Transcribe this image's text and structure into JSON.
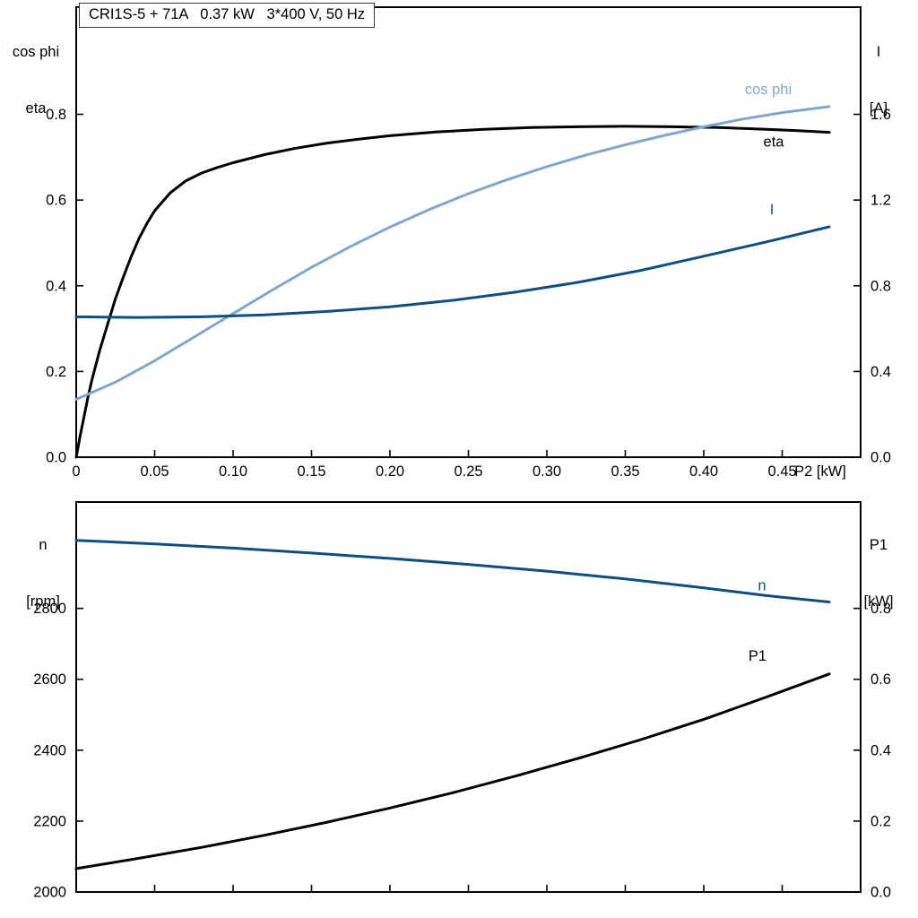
{
  "title_box": "CRI1S-5 + 71A   0.37 kW   3*400 V, 50 Hz",
  "colors": {
    "black": "#000000",
    "light_blue": "#7fa7cc",
    "dark_blue": "#0e4f80"
  },
  "chart_data": [
    {
      "id": "motor-curves-top",
      "type": "line",
      "grid": false,
      "x_axis": {
        "label": "P2 [kW]",
        "range": [
          0,
          0.5
        ],
        "ticks": [
          0,
          0.05,
          0.1,
          0.15,
          0.2,
          0.25,
          0.3,
          0.35,
          0.4,
          0.45
        ],
        "tick_labels": [
          "0",
          "0.05",
          "0.10",
          "0.15",
          "0.20",
          "0.25",
          "0.30",
          "0.35",
          "0.40",
          "0.45"
        ]
      },
      "left_axis": {
        "title_lines": [
          "cos phi",
          "eta"
        ],
        "range": [
          0,
          1.05
        ],
        "ticks": [
          0,
          0.2,
          0.4,
          0.6,
          0.8
        ],
        "tick_labels": [
          "0.0",
          "0.2",
          "0.4",
          "0.6",
          "0.8"
        ]
      },
      "right_axis": {
        "title_lines": [
          "I",
          "[A]"
        ],
        "range": [
          0,
          2.1
        ],
        "ticks": [
          0,
          0.4,
          0.8,
          1.2,
          1.6
        ],
        "tick_labels": [
          "0.0",
          "0.4",
          "0.8",
          "1.2",
          "1.6"
        ]
      },
      "series": [
        {
          "name": "eta",
          "label": "eta",
          "axis": "left",
          "color_key": "black",
          "label_offset": [
            -62,
            16
          ],
          "points": [
            [
              0,
              0
            ],
            [
              0.0025,
              0.05
            ],
            [
              0.005,
              0.095
            ],
            [
              0.0075,
              0.14
            ],
            [
              0.01,
              0.18
            ],
            [
              0.015,
              0.25
            ],
            [
              0.02,
              0.31
            ],
            [
              0.025,
              0.37
            ],
            [
              0.03,
              0.42
            ],
            [
              0.035,
              0.468
            ],
            [
              0.04,
              0.51
            ],
            [
              0.045,
              0.545
            ],
            [
              0.05,
              0.575
            ],
            [
              0.06,
              0.617
            ],
            [
              0.07,
              0.645
            ],
            [
              0.08,
              0.663
            ],
            [
              0.09,
              0.676
            ],
            [
              0.1,
              0.687
            ],
            [
              0.12,
              0.706
            ],
            [
              0.14,
              0.721
            ],
            [
              0.16,
              0.733
            ],
            [
              0.18,
              0.742
            ],
            [
              0.2,
              0.75
            ],
            [
              0.23,
              0.759
            ],
            [
              0.26,
              0.765
            ],
            [
              0.29,
              0.769
            ],
            [
              0.32,
              0.771
            ],
            [
              0.35,
              0.772
            ],
            [
              0.38,
              0.771
            ],
            [
              0.41,
              0.769
            ],
            [
              0.44,
              0.765
            ],
            [
              0.46,
              0.762
            ],
            [
              0.48,
              0.758
            ]
          ]
        },
        {
          "name": "cos-phi",
          "label": "cos phi",
          "axis": "left",
          "color_key": "light_blue",
          "label_offset": [
            -68,
            -14
          ],
          "points": [
            [
              0,
              0.135
            ],
            [
              0.025,
              0.175
            ],
            [
              0.05,
              0.225
            ],
            [
              0.075,
              0.28
            ],
            [
              0.1,
              0.335
            ],
            [
              0.125,
              0.39
            ],
            [
              0.15,
              0.443
            ],
            [
              0.175,
              0.492
            ],
            [
              0.2,
              0.537
            ],
            [
              0.225,
              0.578
            ],
            [
              0.25,
              0.615
            ],
            [
              0.275,
              0.648
            ],
            [
              0.3,
              0.678
            ],
            [
              0.325,
              0.705
            ],
            [
              0.35,
              0.729
            ],
            [
              0.375,
              0.751
            ],
            [
              0.4,
              0.771
            ],
            [
              0.425,
              0.789
            ],
            [
              0.45,
              0.804
            ],
            [
              0.48,
              0.818
            ]
          ]
        },
        {
          "name": "current",
          "label": "I",
          "axis": "right",
          "color_key": "dark_blue",
          "label_offset": [
            -64,
            -14
          ],
          "points": [
            [
              0,
              0.655
            ],
            [
              0.04,
              0.652
            ],
            [
              0.08,
              0.655
            ],
            [
              0.12,
              0.664
            ],
            [
              0.16,
              0.68
            ],
            [
              0.2,
              0.702
            ],
            [
              0.24,
              0.732
            ],
            [
              0.28,
              0.77
            ],
            [
              0.32,
              0.816
            ],
            [
              0.36,
              0.872
            ],
            [
              0.4,
              0.938
            ],
            [
              0.44,
              1.005
            ],
            [
              0.48,
              1.075
            ]
          ]
        }
      ]
    },
    {
      "id": "motor-curves-bottom",
      "type": "line",
      "grid": false,
      "x_axis": {
        "label": "",
        "range": [
          0,
          0.5
        ],
        "ticks": [
          0,
          0.05,
          0.1,
          0.15,
          0.2,
          0.25,
          0.3,
          0.35,
          0.4,
          0.45
        ],
        "tick_labels": null
      },
      "left_axis": {
        "title_lines": [
          "n",
          "[rpm]"
        ],
        "range": [
          2000,
          3100
        ],
        "ticks": [
          2000,
          2200,
          2400,
          2600,
          2800
        ],
        "tick_labels": [
          "2000",
          "2200",
          "2400",
          "2600",
          "2800"
        ]
      },
      "right_axis": {
        "title_lines": [
          "P1",
          "[kW]"
        ],
        "range": [
          0,
          1.1
        ],
        "ticks": [
          0,
          0.2,
          0.4,
          0.6,
          0.8
        ],
        "tick_labels": [
          "0.0",
          "0.2",
          "0.4",
          "0.6",
          "0.8"
        ]
      },
      "series": [
        {
          "name": "speed",
          "label": "n",
          "axis": "left",
          "color_key": "dark_blue",
          "label_offset": [
            -75,
            -13
          ],
          "points": [
            [
              0,
              2992
            ],
            [
              0.05,
              2982
            ],
            [
              0.1,
              2970
            ],
            [
              0.15,
              2956
            ],
            [
              0.2,
              2941
            ],
            [
              0.25,
              2924
            ],
            [
              0.3,
              2905
            ],
            [
              0.35,
              2883
            ],
            [
              0.4,
              2858
            ],
            [
              0.44,
              2836
            ],
            [
              0.48,
              2818
            ]
          ]
        },
        {
          "name": "p1",
          "label": "P1",
          "axis": "right",
          "color_key": "black",
          "label_offset": [
            -80,
            -15
          ],
          "points": [
            [
              0,
              0.066
            ],
            [
              0.04,
              0.095
            ],
            [
              0.08,
              0.126
            ],
            [
              0.12,
              0.16
            ],
            [
              0.16,
              0.197
            ],
            [
              0.2,
              0.237
            ],
            [
              0.24,
              0.28
            ],
            [
              0.28,
              0.327
            ],
            [
              0.32,
              0.377
            ],
            [
              0.36,
              0.43
            ],
            [
              0.4,
              0.487
            ],
            [
              0.44,
              0.55
            ],
            [
              0.48,
              0.615
            ]
          ]
        }
      ]
    }
  ]
}
